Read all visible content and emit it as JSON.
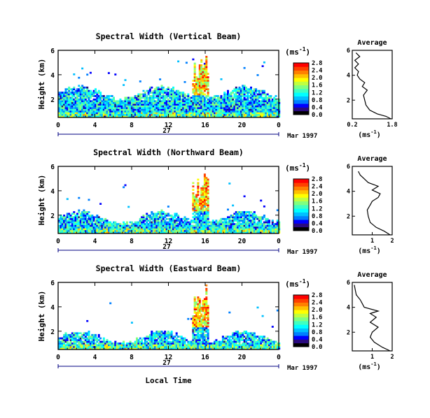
{
  "figure": {
    "x_label": "Local Time",
    "date_day": "27",
    "date_suffix": "Mar 1997",
    "y_label": "Height (km)",
    "units": "(ms",
    "units_exp": "-1",
    "units_close": ")",
    "avg_title": "Average",
    "colorscale": [
      "#000000",
      "#2a0a80",
      "#0000ff",
      "#0080ff",
      "#00c0ff",
      "#00ffff",
      "#40ffc0",
      "#80ff80",
      "#c0ff40",
      "#ffff00",
      "#ffc000",
      "#ff8000",
      "#ff4000",
      "#ff0000"
    ]
  },
  "chart_data": [
    {
      "type": "heatmap",
      "title": "Spectral Width (Vertical Beam)",
      "xlabel": "Local Time",
      "ylabel": "Height (km)",
      "x_ticks": [
        "0",
        "4",
        "8",
        "12",
        "16",
        "20",
        "0"
      ],
      "y_ticks": [
        "2",
        "4",
        "6"
      ],
      "xlim": [
        0,
        24
      ],
      "ylim": [
        0.5,
        6
      ],
      "colorbar_ticks": [
        "0.0",
        "0.4",
        "0.8",
        "1.2",
        "1.6",
        "2.0",
        "2.4",
        "2.8"
      ],
      "colorbar_range": [
        0,
        2.8
      ],
      "avg_x_ticks": [
        "0.2",
        "1.8"
      ],
      "avg_xlim": [
        0.2,
        1.8
      ],
      "average_profile": [
        [
          1.75,
          0.5
        ],
        [
          1.55,
          0.7
        ],
        [
          1.2,
          0.9
        ],
        [
          0.9,
          1.2
        ],
        [
          0.75,
          1.6
        ],
        [
          0.7,
          2.0
        ],
        [
          0.65,
          2.4
        ],
        [
          0.8,
          2.8
        ],
        [
          0.6,
          3.1
        ],
        [
          0.7,
          3.4
        ],
        [
          0.5,
          3.7
        ],
        [
          0.4,
          4.0
        ],
        [
          0.45,
          4.3
        ],
        [
          0.3,
          4.6
        ],
        [
          0.45,
          4.9
        ],
        [
          0.3,
          5.2
        ],
        [
          0.5,
          5.5
        ],
        [
          0.35,
          5.8
        ]
      ],
      "avg_xlabel": "(ms"
    },
    {
      "type": "heatmap",
      "title": "Spectral Width (Northward Beam)",
      "xlabel": "Local Time",
      "ylabel": "Height (km)",
      "x_ticks": [
        "0",
        "4",
        "8",
        "12",
        "16",
        "20",
        "0"
      ],
      "y_ticks": [
        "2",
        "4",
        "6"
      ],
      "xlim": [
        0,
        24
      ],
      "ylim": [
        0.5,
        6
      ],
      "colorbar_ticks": [
        "0.0",
        "0.4",
        "0.8",
        "1.2",
        "1.6",
        "2.0",
        "2.4",
        "2.8"
      ],
      "colorbar_range": [
        0,
        2.8
      ],
      "avg_x_ticks": [
        "1",
        "2"
      ],
      "avg_xlim": [
        0,
        2
      ],
      "average_profile": [
        [
          1.9,
          0.5
        ],
        [
          1.6,
          0.8
        ],
        [
          1.2,
          1.1
        ],
        [
          0.9,
          1.5
        ],
        [
          0.8,
          2.0
        ],
        [
          0.75,
          2.5
        ],
        [
          0.9,
          2.9
        ],
        [
          1.0,
          3.2
        ],
        [
          1.3,
          3.5
        ],
        [
          1.4,
          3.8
        ],
        [
          1.0,
          4.1
        ],
        [
          1.3,
          4.4
        ],
        [
          0.8,
          4.7
        ],
        [
          0.6,
          5.0
        ],
        [
          0.4,
          5.3
        ],
        [
          0.3,
          5.6
        ]
      ],
      "avg_xlabel": "(ms"
    },
    {
      "type": "heatmap",
      "title": "Spectral Width (Eastward Beam)",
      "xlabel": "Local Time",
      "ylabel": "Height (km)",
      "x_ticks": [
        "0",
        "4",
        "8",
        "12",
        "16",
        "20",
        "0"
      ],
      "y_ticks": [
        "2",
        "4",
        "6"
      ],
      "xlim": [
        0,
        24
      ],
      "ylim": [
        0.5,
        6
      ],
      "colorbar_ticks": [
        "0.0",
        "0.4",
        "0.8",
        "1.2",
        "1.6",
        "2.0",
        "2.4",
        "2.8"
      ],
      "colorbar_range": [
        0,
        2.8
      ],
      "avg_x_ticks": [
        "1",
        "2"
      ],
      "avg_xlim": [
        0,
        2
      ],
      "average_profile": [
        [
          1.9,
          0.5
        ],
        [
          1.5,
          0.8
        ],
        [
          1.1,
          1.2
        ],
        [
          0.9,
          1.6
        ],
        [
          1.0,
          2.0
        ],
        [
          1.3,
          2.4
        ],
        [
          0.9,
          2.8
        ],
        [
          1.2,
          3.2
        ],
        [
          0.9,
          3.5
        ],
        [
          1.3,
          3.7
        ],
        [
          0.6,
          4.0
        ],
        [
          0.5,
          4.3
        ],
        [
          0.4,
          4.6
        ],
        [
          0.2,
          5.0
        ],
        [
          0.15,
          5.4
        ],
        [
          0.1,
          5.8
        ]
      ],
      "avg_xlabel": "(ms"
    }
  ]
}
